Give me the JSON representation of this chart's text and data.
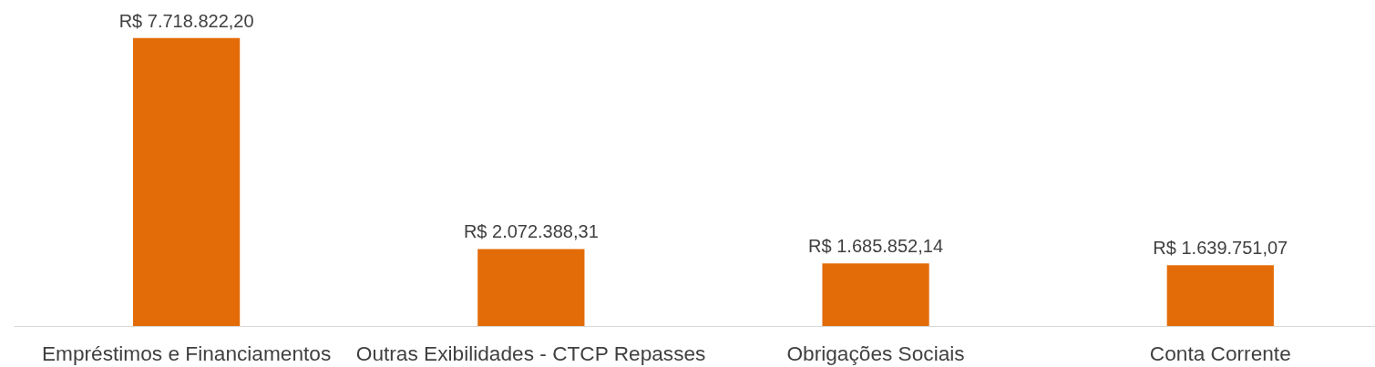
{
  "chart_data": {
    "type": "bar",
    "categories": [
      "Empréstimos e Financiamentos",
      "Outras Exibilidades - CTCP Repasses",
      "Obrigações Sociais",
      "Conta Corrente"
    ],
    "values": [
      7718822.2,
      2072388.31,
      1685852.14,
      1639751.07
    ],
    "value_labels": [
      "R$ 7.718.822,20",
      "R$ 2.072.388,31",
      "R$ 1.685.852,14",
      "R$ 1.639.751,07"
    ],
    "color": "#e36c09",
    "tick_labels": "x",
    "grid": false
  }
}
